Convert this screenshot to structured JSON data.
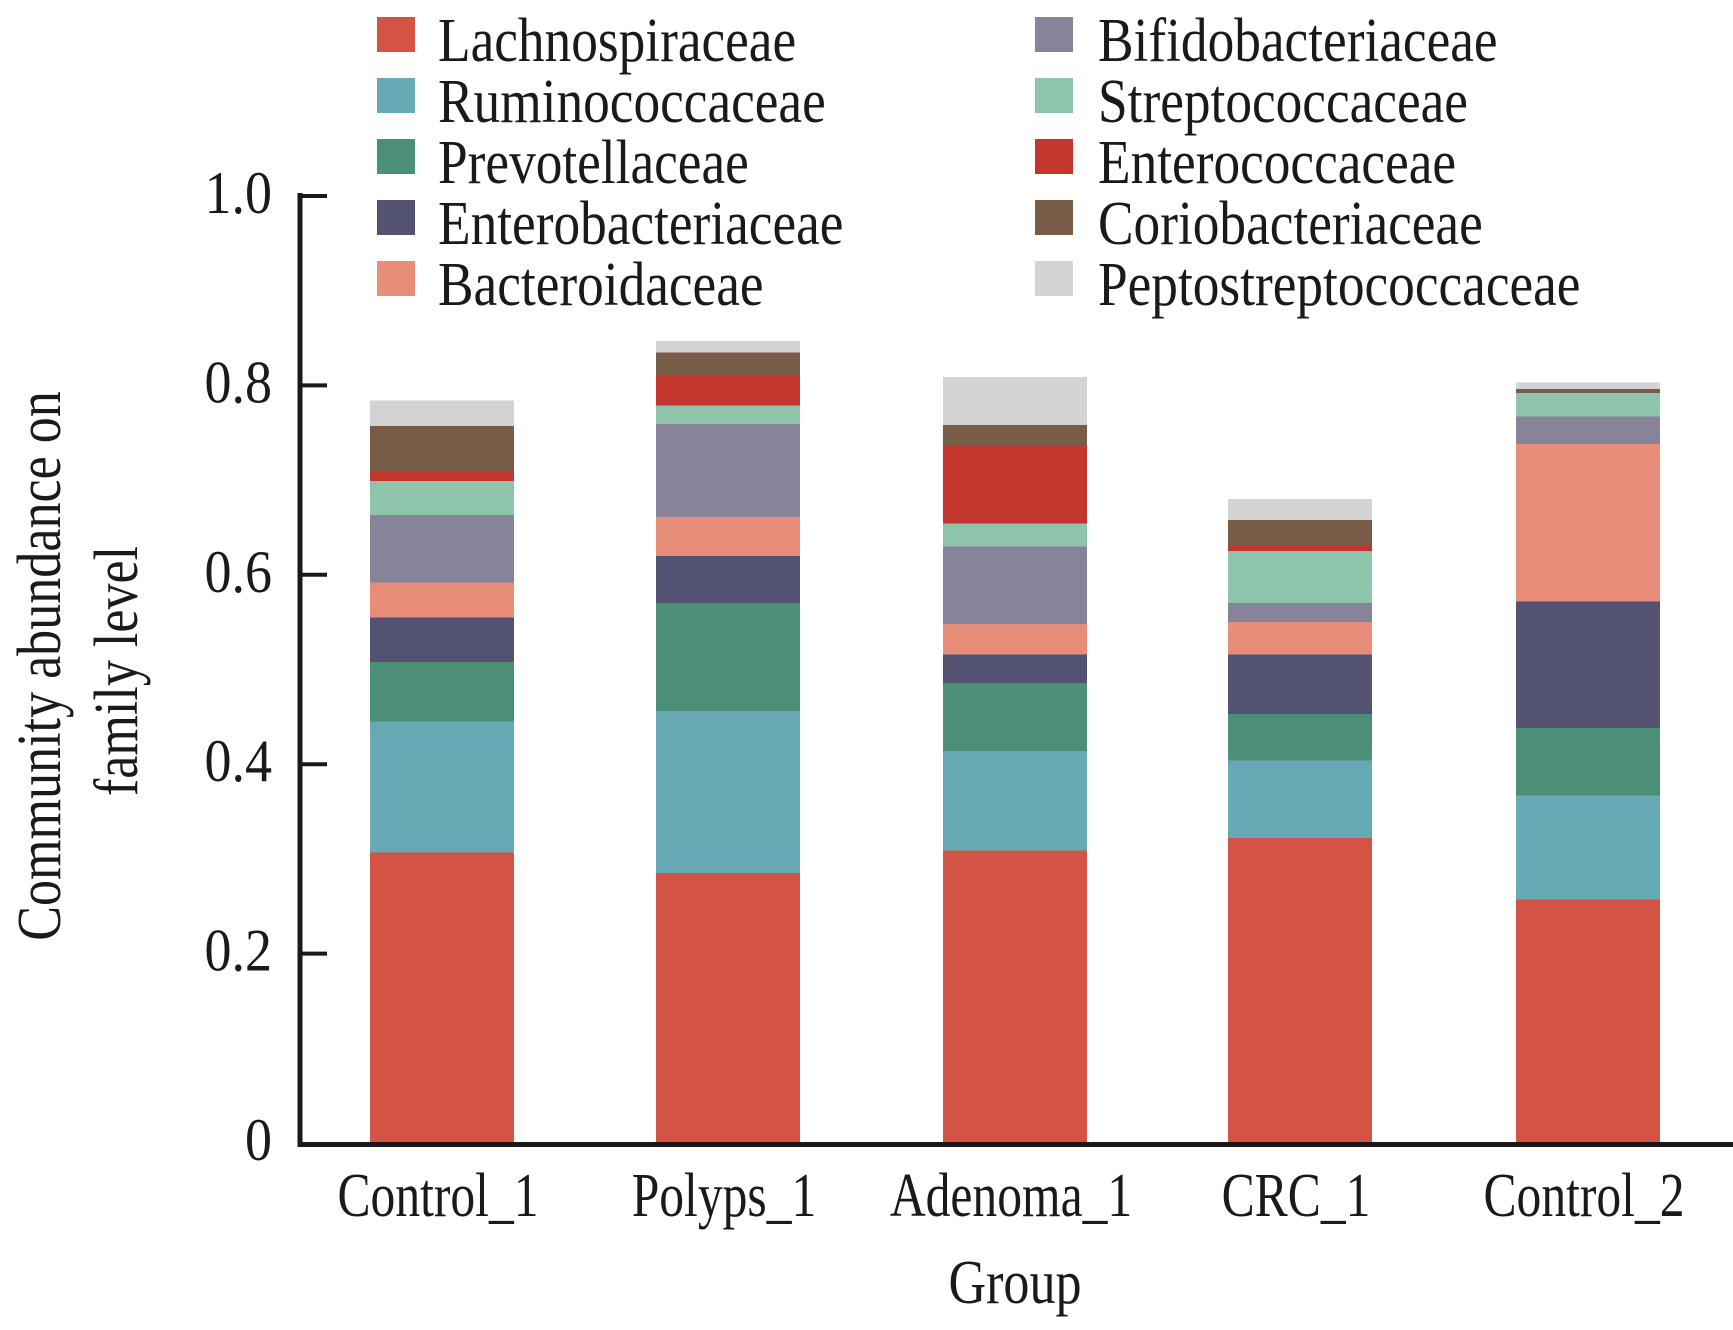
{
  "chart_data": {
    "type": "bar",
    "stacked": true,
    "title": "",
    "xlabel": "Group",
    "ylabel_lines": [
      "Community abundance on",
      "family level"
    ],
    "ylim": [
      0,
      1.0
    ],
    "yticks": [
      0,
      0.2,
      0.4,
      0.6,
      0.8,
      1.0
    ],
    "ytick_labels": [
      "0",
      "0.2",
      "0.4",
      "0.6",
      "0.8",
      "1.0"
    ],
    "grid": false,
    "legend_position": "top",
    "categories": [
      "Control_1",
      "Polyps_1",
      "Adenoma_1",
      "CRC_1",
      "Control_2"
    ],
    "series": [
      {
        "name": "Lachnospiraceae",
        "color": "#D35345",
        "values": [
          0.307,
          0.285,
          0.309,
          0.322,
          0.257
        ]
      },
      {
        "name": "Ruminococcaceae",
        "color": "#67AAB5",
        "values": [
          0.138,
          0.171,
          0.105,
          0.082,
          0.11
        ]
      },
      {
        "name": "Prevotellaceae",
        "color": "#4B9076",
        "values": [
          0.063,
          0.114,
          0.072,
          0.049,
          0.071
        ]
      },
      {
        "name": "Enterobacteriaceae",
        "color": "#535271",
        "values": [
          0.047,
          0.05,
          0.03,
          0.063,
          0.134
        ]
      },
      {
        "name": "Bacteroidaceae",
        "color": "#E78E79",
        "values": [
          0.037,
          0.041,
          0.032,
          0.034,
          0.166
        ]
      },
      {
        "name": "Bifidobacteriaceae",
        "color": "#878499",
        "values": [
          0.071,
          0.098,
          0.082,
          0.02,
          0.029
        ]
      },
      {
        "name": "Streptococcaceae",
        "color": "#8FC4AC",
        "values": [
          0.036,
          0.02,
          0.024,
          0.055,
          0.025
        ]
      },
      {
        "name": "Enterococcaceae",
        "color": "#C4352D",
        "values": [
          0.01,
          0.032,
          0.083,
          0.006,
          0.0
        ]
      },
      {
        "name": "Coriobacteriaceae",
        "color": "#795C48",
        "values": [
          0.048,
          0.024,
          0.021,
          0.027,
          0.004
        ]
      },
      {
        "name": "Peptostreptococcaceae",
        "color": "#D3D3D3",
        "values": [
          0.027,
          0.012,
          0.051,
          0.022,
          0.007
        ]
      }
    ]
  }
}
